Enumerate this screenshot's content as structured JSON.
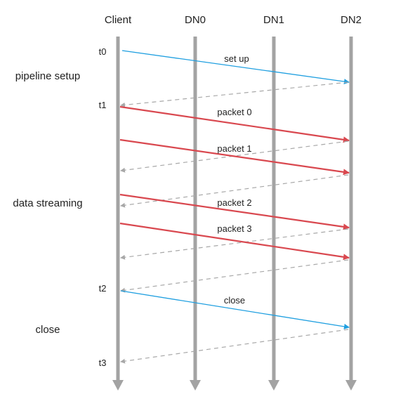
{
  "lifelines": [
    {
      "id": "client",
      "label": "Client"
    },
    {
      "id": "dn0",
      "label": "DN0"
    },
    {
      "id": "dn1",
      "label": "DN1"
    },
    {
      "id": "dn2",
      "label": "DN2"
    }
  ],
  "phases": {
    "setup": "pipeline setup",
    "streaming": "data streaming",
    "close": "close"
  },
  "times": {
    "t0": "t0",
    "t1": "t1",
    "t2": "t2",
    "t3": "t3"
  },
  "messages": {
    "setup": "set up",
    "packet0": "packet 0",
    "packet1": "packet 1",
    "packet2": "packet 2",
    "packet3": "packet 3",
    "close": "close"
  },
  "colors": {
    "lifeline": "#a3a3a3",
    "control": "#1f9fe0",
    "data": "#d9484f",
    "ack": "#a8a8a8"
  }
}
